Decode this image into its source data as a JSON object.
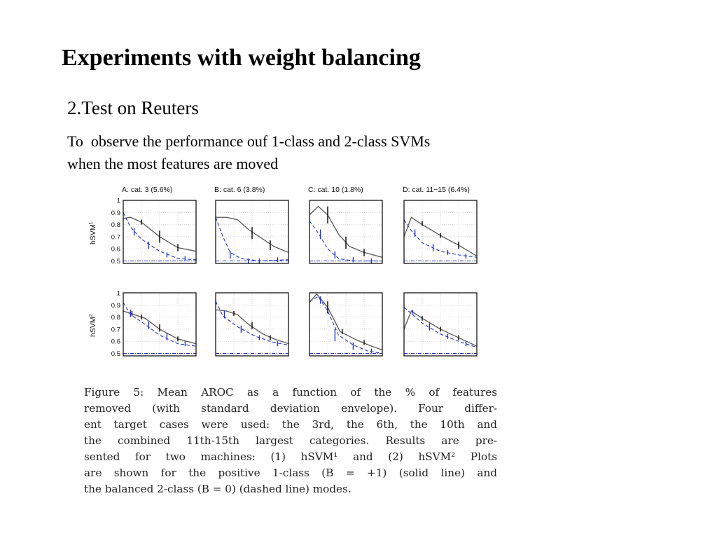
{
  "slide": {
    "title": "Experiments with weight balancing",
    "subtitle": "2.Test on Reuters",
    "description_lines": [
      "To  observe the performance ouf 1-class and 2-class SVMs",
      "when the most features are moved"
    ]
  },
  "figure": {
    "caption_lines": [
      "Figure 5:  Mean AROC as a function of the % of features",
      "removed (with standard deviation envelope).  Four differ-",
      "ent target cases were used:  the 3rd, the 6th, the 10th and",
      "the combined 11th-15th largest categories.  Results are pre-",
      "sented for two machines:  (1) hSVM¹ and (2) hSVM²  Plots",
      "are shown for the positive 1-class (B = +1) (solid line) and",
      "the balanced 2-class (B = 0) (dashed line) modes."
    ],
    "colors": {
      "solid": "#555555",
      "dashed": "#2233cc",
      "baseline": "#2233cc",
      "errorbar_solid": "#000000"
    }
  },
  "chart_data": {
    "type": "line",
    "columns": [
      "A: cat. 3 (5.6%)",
      "B: cat. 6 (3.8%)",
      "C: cat. 10 (1.8%)",
      "D: cat. 11−15 (6.4%)"
    ],
    "rows": [
      {
        "ylabel": "hSVM",
        "ylabel_sup": "1"
      },
      {
        "ylabel": "hSVM",
        "ylabel_sup": "2"
      }
    ],
    "yticks": [
      "1",
      "0.9",
      "0.8",
      "0.7",
      "0.6",
      "0.5"
    ],
    "ylim": [
      0.48,
      1.0
    ],
    "xlim": [
      0,
      1
    ],
    "grid": true,
    "baseline": 0.5,
    "panels": [
      {
        "row": 0,
        "col": 0,
        "solid": [
          [
            0,
            0.85
          ],
          [
            0.1,
            0.86
          ],
          [
            0.25,
            0.82
          ],
          [
            0.5,
            0.7
          ],
          [
            0.75,
            0.61
          ],
          [
            1,
            0.58
          ]
        ],
        "dashed": [
          [
            0,
            0.9
          ],
          [
            0.1,
            0.78
          ],
          [
            0.25,
            0.68
          ],
          [
            0.5,
            0.58
          ],
          [
            0.75,
            0.52
          ],
          [
            1,
            0.51
          ]
        ],
        "errs_solid": [
          [
            0.25,
            0.82,
            0.02
          ],
          [
            0.5,
            0.7,
            0.05
          ],
          [
            0.75,
            0.61,
            0.03
          ]
        ],
        "errs_dashed": [
          [
            0.15,
            0.74,
            0.03
          ],
          [
            0.35,
            0.63,
            0.03
          ],
          [
            0.6,
            0.55,
            0.02
          ],
          [
            0.85,
            0.52,
            0.02
          ]
        ]
      },
      {
        "row": 0,
        "col": 1,
        "solid": [
          [
            0,
            0.86
          ],
          [
            0.15,
            0.86
          ],
          [
            0.3,
            0.84
          ],
          [
            0.45,
            0.76
          ],
          [
            0.6,
            0.7
          ],
          [
            0.8,
            0.62
          ],
          [
            1,
            0.57
          ]
        ],
        "dashed": [
          [
            0,
            0.86
          ],
          [
            0.1,
            0.7
          ],
          [
            0.2,
            0.57
          ],
          [
            0.35,
            0.52
          ],
          [
            0.6,
            0.5
          ],
          [
            1,
            0.51
          ]
        ],
        "errs_solid": [
          [
            0.5,
            0.73,
            0.05
          ],
          [
            0.75,
            0.63,
            0.04
          ]
        ],
        "errs_dashed": [
          [
            0.2,
            0.55,
            0.03
          ],
          [
            0.45,
            0.5,
            0.02
          ],
          [
            0.6,
            0.5,
            0.02
          ],
          [
            0.85,
            0.51,
            0.02
          ]
        ]
      },
      {
        "row": 0,
        "col": 2,
        "solid": [
          [
            0,
            0.88
          ],
          [
            0.12,
            0.95
          ],
          [
            0.25,
            0.88
          ],
          [
            0.4,
            0.72
          ],
          [
            0.55,
            0.62
          ],
          [
            0.75,
            0.57
          ],
          [
            1,
            0.53
          ]
        ],
        "dashed": [
          [
            0,
            0.83
          ],
          [
            0.12,
            0.73
          ],
          [
            0.25,
            0.6
          ],
          [
            0.4,
            0.52
          ],
          [
            0.6,
            0.5
          ],
          [
            1,
            0.5
          ]
        ],
        "errs_solid": [
          [
            0.25,
            0.88,
            0.07
          ],
          [
            0.5,
            0.65,
            0.05
          ],
          [
            0.75,
            0.57,
            0.03
          ]
        ],
        "errs_dashed": [
          [
            0.15,
            0.72,
            0.04
          ],
          [
            0.35,
            0.55,
            0.03
          ],
          [
            0.6,
            0.51,
            0.02
          ],
          [
            0.85,
            0.5,
            0.02
          ]
        ]
      },
      {
        "row": 0,
        "col": 3,
        "solid": [
          [
            0,
            0.7
          ],
          [
            0.1,
            0.86
          ],
          [
            0.25,
            0.8
          ],
          [
            0.5,
            0.71
          ],
          [
            0.75,
            0.63
          ],
          [
            1,
            0.54
          ]
        ],
        "dashed": [
          [
            0,
            0.84
          ],
          [
            0.1,
            0.75
          ],
          [
            0.25,
            0.65
          ],
          [
            0.5,
            0.58
          ],
          [
            0.75,
            0.55
          ],
          [
            1,
            0.53
          ]
        ],
        "errs_solid": [
          [
            0.25,
            0.81,
            0.02
          ],
          [
            0.5,
            0.71,
            0.02
          ],
          [
            0.75,
            0.63,
            0.03
          ]
        ],
        "errs_dashed": [
          [
            0.15,
            0.73,
            0.03
          ],
          [
            0.4,
            0.61,
            0.03
          ],
          [
            0.6,
            0.57,
            0.02
          ],
          [
            0.85,
            0.54,
            0.02
          ]
        ]
      },
      {
        "row": 1,
        "col": 0,
        "solid": [
          [
            0,
            0.85
          ],
          [
            0.1,
            0.83
          ],
          [
            0.3,
            0.79
          ],
          [
            0.5,
            0.7
          ],
          [
            0.75,
            0.62
          ],
          [
            1,
            0.58
          ]
        ],
        "dashed": [
          [
            0,
            0.92
          ],
          [
            0.1,
            0.82
          ],
          [
            0.3,
            0.74
          ],
          [
            0.5,
            0.65
          ],
          [
            0.75,
            0.58
          ],
          [
            1,
            0.56
          ]
        ],
        "errs_solid": [
          [
            0.12,
            0.83,
            0.02
          ],
          [
            0.25,
            0.8,
            0.02
          ],
          [
            0.5,
            0.71,
            0.03
          ],
          [
            0.75,
            0.62,
            0.02
          ]
        ],
        "errs_dashed": [
          [
            0.1,
            0.83,
            0.03
          ],
          [
            0.35,
            0.73,
            0.03
          ],
          [
            0.6,
            0.64,
            0.03
          ],
          [
            0.85,
            0.58,
            0.02
          ]
        ]
      },
      {
        "row": 1,
        "col": 1,
        "solid": [
          [
            0,
            0.86
          ],
          [
            0.15,
            0.85
          ],
          [
            0.3,
            0.82
          ],
          [
            0.45,
            0.74
          ],
          [
            0.65,
            0.66
          ],
          [
            0.8,
            0.62
          ],
          [
            1,
            0.58
          ]
        ],
        "dashed": [
          [
            0,
            0.93
          ],
          [
            0.1,
            0.81
          ],
          [
            0.3,
            0.72
          ],
          [
            0.55,
            0.64
          ],
          [
            0.8,
            0.59
          ],
          [
            1,
            0.57
          ]
        ],
        "errs_solid": [
          [
            0.25,
            0.83,
            0.02
          ],
          [
            0.5,
            0.73,
            0.03
          ],
          [
            0.75,
            0.63,
            0.02
          ]
        ],
        "errs_dashed": [
          [
            0.12,
            0.82,
            0.03
          ],
          [
            0.35,
            0.7,
            0.03
          ],
          [
            0.6,
            0.63,
            0.02
          ],
          [
            0.85,
            0.58,
            0.02
          ]
        ]
      },
      {
        "row": 1,
        "col": 2,
        "solid": [
          [
            0,
            0.92
          ],
          [
            0.1,
            0.99
          ],
          [
            0.25,
            0.88
          ],
          [
            0.42,
            0.68
          ],
          [
            0.65,
            0.61
          ],
          [
            0.85,
            0.56
          ],
          [
            1,
            0.53
          ]
        ],
        "dashed": [
          [
            0,
            0.93
          ],
          [
            0.12,
            0.97
          ],
          [
            0.25,
            0.85
          ],
          [
            0.4,
            0.65
          ],
          [
            0.6,
            0.57
          ],
          [
            0.8,
            0.52
          ],
          [
            1,
            0.5
          ]
        ],
        "errs_solid": [
          [
            0.25,
            0.88,
            0.05
          ],
          [
            0.45,
            0.68,
            0.02
          ],
          [
            0.75,
            0.59,
            0.02
          ]
        ],
        "errs_dashed": [
          [
            0.15,
            0.94,
            0.03
          ],
          [
            0.35,
            0.65,
            0.05
          ],
          [
            0.6,
            0.56,
            0.03
          ],
          [
            0.85,
            0.52,
            0.02
          ]
        ]
      },
      {
        "row": 1,
        "col": 3,
        "solid": [
          [
            0,
            0.7
          ],
          [
            0.1,
            0.85
          ],
          [
            0.25,
            0.79
          ],
          [
            0.5,
            0.7
          ],
          [
            0.75,
            0.63
          ],
          [
            1,
            0.56
          ]
        ],
        "dashed": [
          [
            0,
            0.88
          ],
          [
            0.1,
            0.83
          ],
          [
            0.25,
            0.75
          ],
          [
            0.5,
            0.66
          ],
          [
            0.75,
            0.6
          ],
          [
            1,
            0.55
          ]
        ],
        "errs_solid": [
          [
            0.25,
            0.79,
            0.02
          ],
          [
            0.5,
            0.7,
            0.02
          ],
          [
            0.75,
            0.63,
            0.02
          ]
        ],
        "errs_dashed": [
          [
            0.12,
            0.84,
            0.02
          ],
          [
            0.35,
            0.72,
            0.03
          ],
          [
            0.6,
            0.64,
            0.02
          ],
          [
            0.85,
            0.58,
            0.02
          ]
        ]
      }
    ]
  }
}
